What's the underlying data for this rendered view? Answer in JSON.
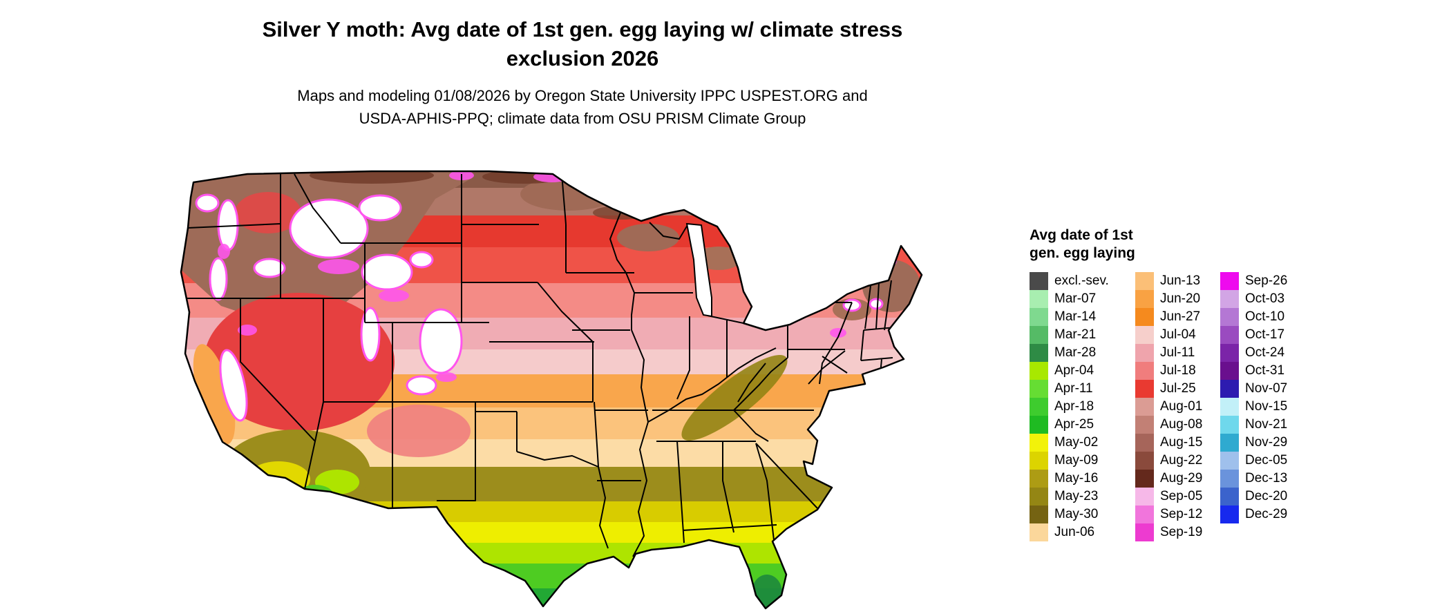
{
  "title": {
    "line1": "Silver Y moth: Avg date of 1st gen. egg laying w/ climate stress",
    "line2": "exclusion 2026"
  },
  "subtitle": {
    "line1": "Maps and modeling 01/08/2026 by Oregon State University IPPC USPEST.ORG and",
    "line2": "USDA-APHIS-PPQ; climate data from OSU PRISM Climate Group"
  },
  "legend": {
    "title_line1": "Avg date of 1st",
    "title_line2": "gen. egg laying",
    "columns": [
      {
        "entries": [
          {
            "label": "excl.-sev.",
            "color": "#4A4A4A"
          },
          {
            "label": "Mar-07",
            "color": "#A8EEB0"
          },
          {
            "label": "Mar-14",
            "color": "#7FD98F"
          },
          {
            "label": "Mar-21",
            "color": "#55BB66"
          },
          {
            "label": "Mar-28",
            "color": "#2E8B45"
          },
          {
            "label": "Apr-04",
            "color": "#A8E800"
          },
          {
            "label": "Apr-11",
            "color": "#66DD33"
          },
          {
            "label": "Apr-18",
            "color": "#3ECC2E"
          },
          {
            "label": "Apr-25",
            "color": "#1FBB22"
          },
          {
            "label": "May-02",
            "color": "#F2F20A"
          },
          {
            "label": "May-09",
            "color": "#DCD400"
          },
          {
            "label": "May-16",
            "color": "#AD9C14"
          },
          {
            "label": "May-23",
            "color": "#948614"
          },
          {
            "label": "May-30",
            "color": "#756312"
          },
          {
            "label": "Jun-06",
            "color": "#FBD79B"
          }
        ]
      },
      {
        "entries": [
          {
            "label": "Jun-13",
            "color": "#FBBF77"
          },
          {
            "label": "Jun-20",
            "color": "#F9A243"
          },
          {
            "label": "Jun-27",
            "color": "#F58A1E"
          },
          {
            "label": "Jul-04",
            "color": "#F6CFCB"
          },
          {
            "label": "Jul-11",
            "color": "#EFA4AC"
          },
          {
            "label": "Jul-18",
            "color": "#F07D7D"
          },
          {
            "label": "Jul-25",
            "color": "#E93A31"
          },
          {
            "label": "Aug-01",
            "color": "#DB9C94"
          },
          {
            "label": "Aug-08",
            "color": "#C28075"
          },
          {
            "label": "Aug-15",
            "color": "#A6655A"
          },
          {
            "label": "Aug-22",
            "color": "#8A4A3C"
          },
          {
            "label": "Aug-29",
            "color": "#64291C"
          },
          {
            "label": "Sep-05",
            "color": "#F6B8E8"
          },
          {
            "label": "Sep-12",
            "color": "#F175DC"
          },
          {
            "label": "Sep-19",
            "color": "#ED3BD0"
          }
        ]
      },
      {
        "entries": [
          {
            "label": "Sep-26",
            "color": "#EE0AEE"
          },
          {
            "label": "Oct-03",
            "color": "#D2A5E5"
          },
          {
            "label": "Oct-10",
            "color": "#B477D4"
          },
          {
            "label": "Oct-17",
            "color": "#9A4BC0"
          },
          {
            "label": "Oct-24",
            "color": "#7B24A8"
          },
          {
            "label": "Oct-31",
            "color": "#6A0F8E"
          },
          {
            "label": "Nov-07",
            "color": "#2D1BB0"
          },
          {
            "label": "Nov-15",
            "color": "#C2F0F8"
          },
          {
            "label": "Nov-21",
            "color": "#6FD8EC"
          },
          {
            "label": "Nov-29",
            "color": "#2FAAD0"
          },
          {
            "label": "Dec-05",
            "color": "#9FC0EC"
          },
          {
            "label": "Dec-13",
            "color": "#6A93DC"
          },
          {
            "label": "Dec-20",
            "color": "#3B63CC"
          },
          {
            "label": "Dec-29",
            "color": "#1729EE"
          }
        ]
      }
    ]
  }
}
